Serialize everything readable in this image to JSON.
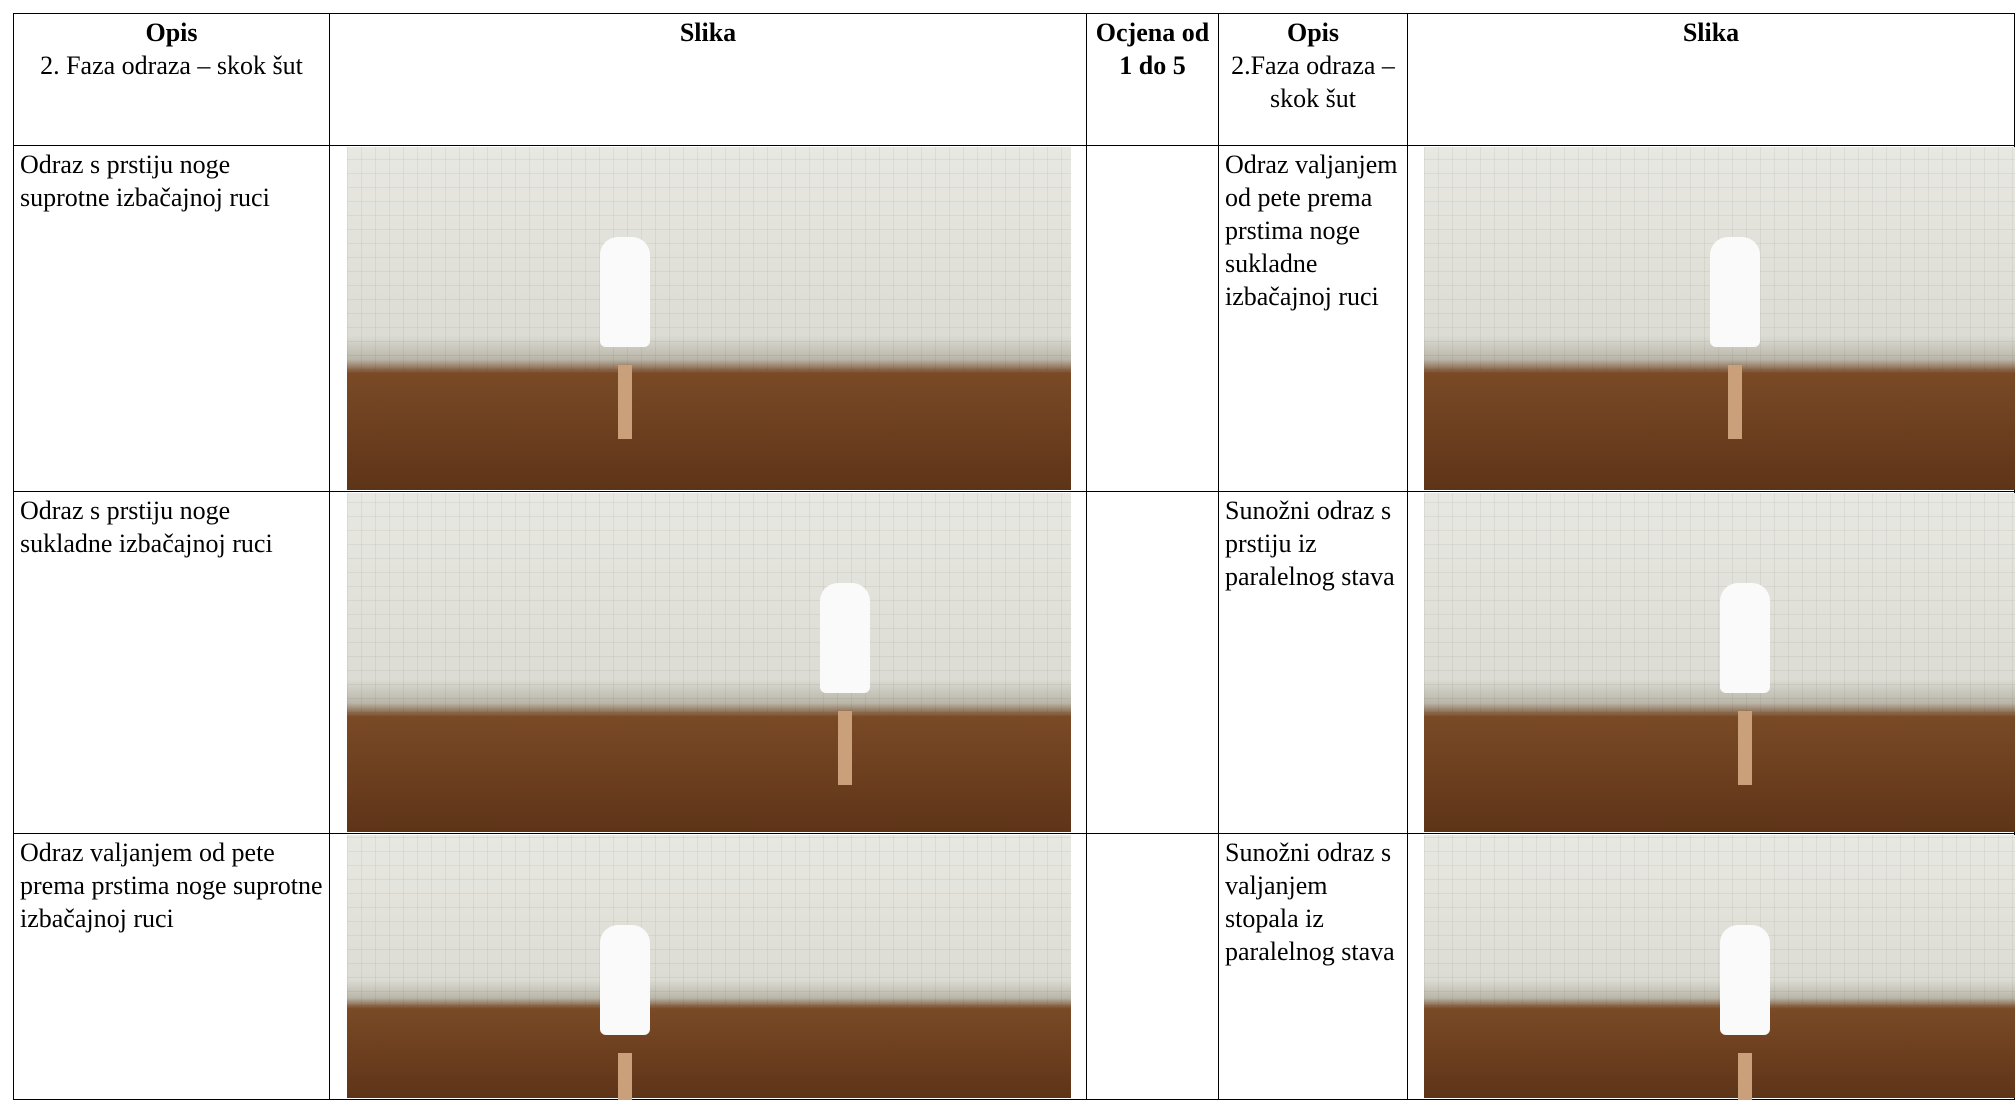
{
  "table": {
    "header": [
      {
        "title": "Opis",
        "subtitle": "2. Faza odraza – skok šut"
      },
      {
        "title": "Slika"
      },
      {
        "title": "Ocjena od 1 do 5"
      },
      {
        "title": "Opis",
        "subtitle": "2.Faza odraza –skok šut"
      },
      {
        "title": "Slika"
      }
    ],
    "rows": [
      {
        "left": "Odraz s prstiju noge suprotne izbačajnoj ruci",
        "right": "Odraz valjanjem od pete prema prstima noge sukladne izbačajnoj ruci"
      },
      {
        "left": "Odraz s prstiju noge sukladne izbačajnoj ruci",
        "right": "Sunožni odraz s prstiju iz paralelnog stava"
      },
      {
        "left": "Odraz valjanjem od pete prema prstima noge suprotne izbačajnoj ruci",
        "right": "Sunožni odraz s valjanjem stopala iz paralelnog stava"
      }
    ]
  }
}
